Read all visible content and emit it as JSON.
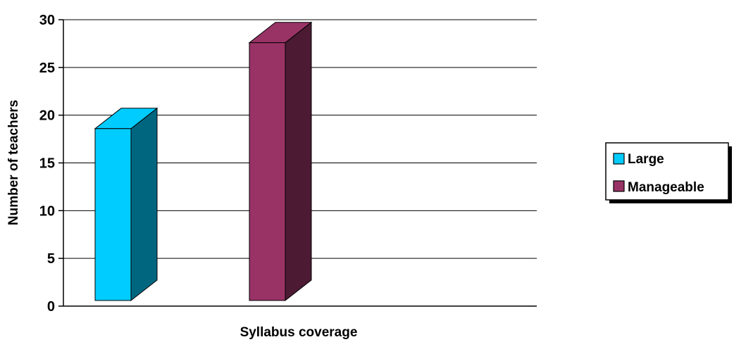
{
  "chart_data": {
    "type": "bar",
    "title": "",
    "xlabel": "Syllabus coverage",
    "ylabel": "Number of teachers",
    "ylim": [
      0,
      30
    ],
    "yticks": [
      0,
      5,
      10,
      15,
      20,
      25,
      30
    ],
    "ytick_labels": [
      "0",
      "5",
      "10",
      "15",
      "20",
      "25",
      "30"
    ],
    "grid": true,
    "three_d": true,
    "legend_position": "right",
    "series": [
      {
        "name": "Large",
        "value": 18,
        "color": "#00CCFF",
        "side_color": "#006680"
      },
      {
        "name": "Manageable",
        "value": 27,
        "color": "#993366",
        "side_color": "#4C1A33"
      }
    ]
  }
}
